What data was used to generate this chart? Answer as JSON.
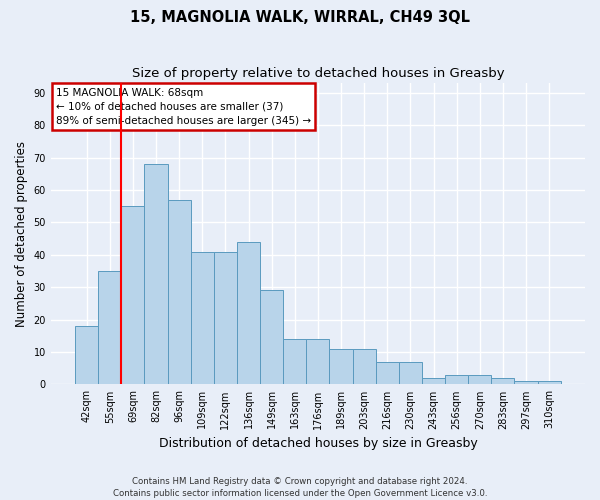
{
  "title": "15, MAGNOLIA WALK, WIRRAL, CH49 3QL",
  "subtitle": "Size of property relative to detached houses in Greasby",
  "xlabel": "Distribution of detached houses by size in Greasby",
  "ylabel": "Number of detached properties",
  "categories": [
    "42sqm",
    "55sqm",
    "69sqm",
    "82sqm",
    "96sqm",
    "109sqm",
    "122sqm",
    "136sqm",
    "149sqm",
    "163sqm",
    "176sqm",
    "189sqm",
    "203sqm",
    "216sqm",
    "230sqm",
    "243sqm",
    "256sqm",
    "270sqm",
    "283sqm",
    "297sqm",
    "310sqm"
  ],
  "values": [
    18,
    35,
    55,
    68,
    57,
    41,
    41,
    44,
    29,
    14,
    14,
    11,
    11,
    7,
    7,
    2,
    3,
    3,
    2,
    1,
    1
  ],
  "bar_color": "#b8d4ea",
  "bar_edge_color": "#5a9abf",
  "annotation_title": "15 MAGNOLIA WALK: 68sqm",
  "annotation_line1": "← 10% of detached houses are smaller (37)",
  "annotation_line2": "89% of semi-detached houses are larger (345) →",
  "annotation_box_color": "#ffffff",
  "annotation_box_edge": "#cc0000",
  "ylim": [
    0,
    93
  ],
  "yticks": [
    0,
    10,
    20,
    30,
    40,
    50,
    60,
    70,
    80,
    90
  ],
  "footer": "Contains HM Land Registry data © Crown copyright and database right 2024.\nContains public sector information licensed under the Open Government Licence v3.0.",
  "background_color": "#e8eef8",
  "grid_color": "#ffffff",
  "title_fontsize": 10.5,
  "subtitle_fontsize": 9.5,
  "tick_fontsize": 7,
  "ylabel_fontsize": 8.5,
  "xlabel_fontsize": 9
}
